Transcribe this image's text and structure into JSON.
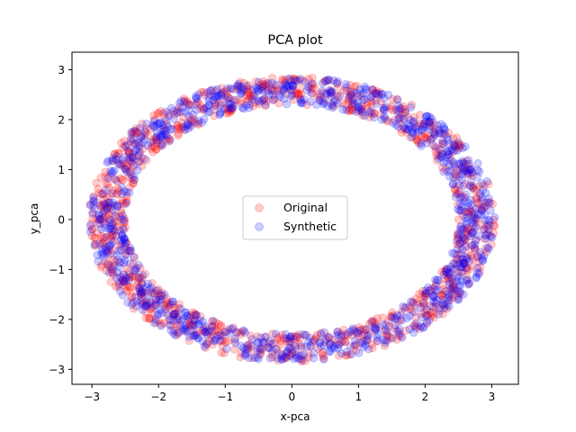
{
  "chart_data": {
    "type": "scatter",
    "title": "PCA plot",
    "xlabel": "x-pca",
    "ylabel": "y_pca",
    "xlim": [
      -3.3,
      3.4
    ],
    "ylim": [
      -3.3,
      3.35
    ],
    "xticks": [
      -3,
      -2,
      -1,
      0,
      1,
      2,
      3
    ],
    "yticks": [
      -3,
      -2,
      -1,
      0,
      1,
      2,
      3
    ],
    "xtick_labels": [
      "−3",
      "−2",
      "−1",
      "0",
      "1",
      "2",
      "3"
    ],
    "ytick_labels": [
      "−3",
      "−2",
      "−1",
      "0",
      "1",
      "2",
      "3"
    ],
    "grid": false,
    "legend_position": "center",
    "series": [
      {
        "name": "Original",
        "color": "#ff0000",
        "alpha": 0.2,
        "shape": "ring",
        "point_count": 1000,
        "center": [
          0,
          0
        ],
        "x_radius": [
          2.5,
          3.05
        ],
        "y_radius": [
          2.3,
          2.85
        ]
      },
      {
        "name": "Synthetic",
        "color": "#0000ff",
        "alpha": 0.2,
        "shape": "ring",
        "point_count": 1000,
        "center": [
          0,
          0
        ],
        "x_radius": [
          2.5,
          3.05
        ],
        "y_radius": [
          2.3,
          2.85
        ]
      }
    ]
  }
}
